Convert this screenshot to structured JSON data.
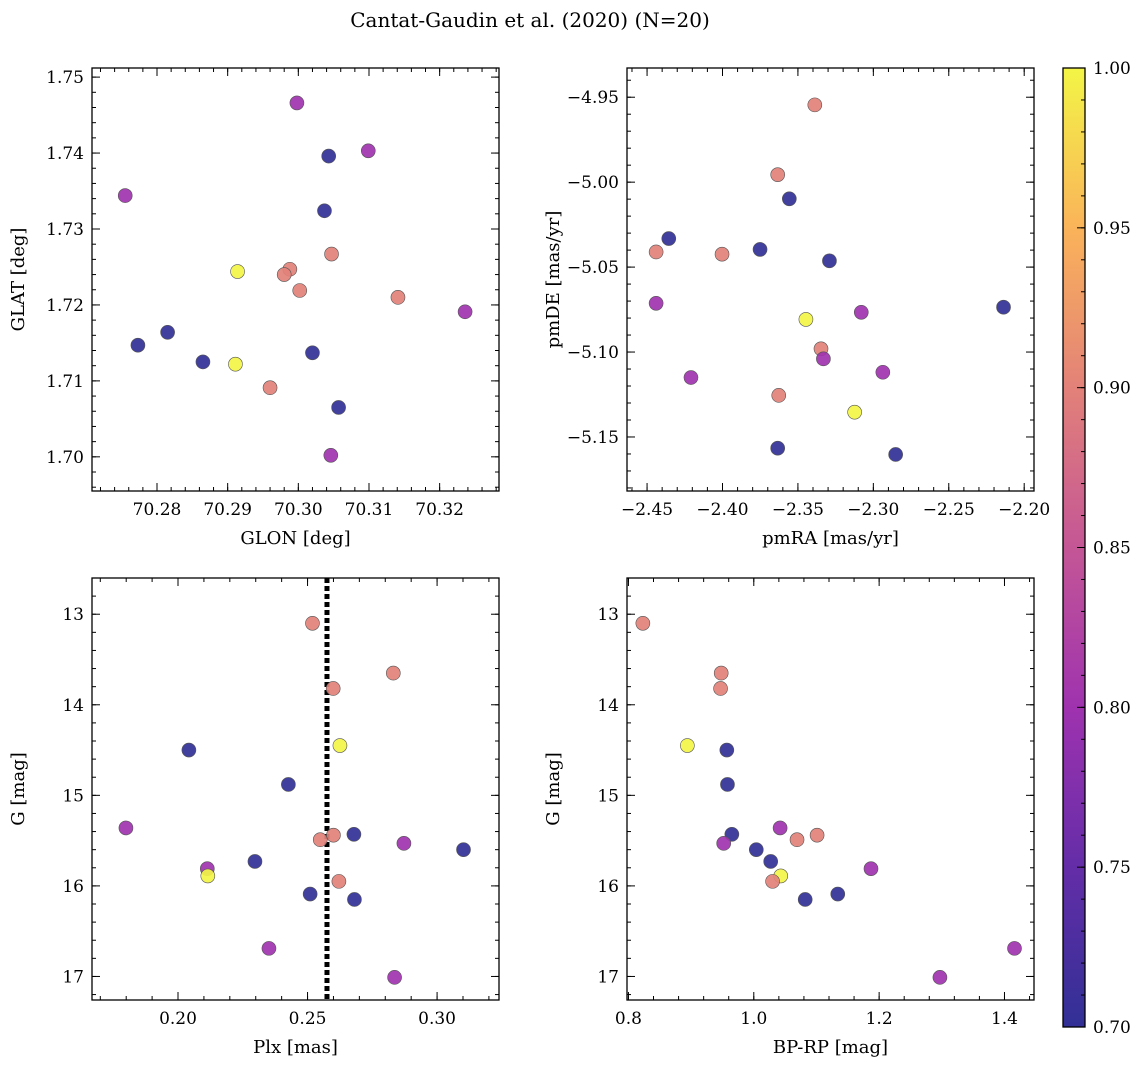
{
  "figure": {
    "title": "Cantat-Gaudin et al. (2020) (N=20)"
  },
  "colorbar": {
    "colormap": "plasma",
    "range": [
      0.7,
      1.0
    ],
    "ticks": [
      "0.70",
      "0.75",
      "0.80",
      "0.85",
      "0.90",
      "0.95",
      "1.00"
    ]
  },
  "chart_data": [
    {
      "type": "scatter",
      "xlabel": "GLON [deg]",
      "ylabel": "GLAT [deg]",
      "xlim": [
        70.2708,
        70.3284
      ],
      "ylim": [
        1.6955,
        1.7512
      ],
      "xticks": [
        "70.28",
        "70.29",
        "70.30",
        "70.31",
        "70.32"
      ],
      "yticks": [
        "1.70",
        "1.71",
        "1.72",
        "1.73",
        "1.74",
        "1.75"
      ],
      "points": [
        {
          "x": 70.2998,
          "y": 1.7466,
          "c": 0.8
        },
        {
          "x": 70.3043,
          "y": 1.7396,
          "c": 0.7
        },
        {
          "x": 70.3099,
          "y": 1.7403,
          "c": 0.8
        },
        {
          "x": 70.2755,
          "y": 1.7344,
          "c": 0.8
        },
        {
          "x": 70.3037,
          "y": 1.7324,
          "c": 0.7
        },
        {
          "x": 70.3047,
          "y": 1.7267,
          "c": 0.9
        },
        {
          "x": 70.2914,
          "y": 1.7244,
          "c": 1.0
        },
        {
          "x": 70.2988,
          "y": 1.7247,
          "c": 0.9
        },
        {
          "x": 70.298,
          "y": 1.724,
          "c": 0.9
        },
        {
          "x": 70.3002,
          "y": 1.7219,
          "c": 0.9
        },
        {
          "x": 70.3141,
          "y": 1.721,
          "c": 0.9
        },
        {
          "x": 70.3236,
          "y": 1.7191,
          "c": 0.8
        },
        {
          "x": 70.2773,
          "y": 1.7147,
          "c": 0.7
        },
        {
          "x": 70.2815,
          "y": 1.7164,
          "c": 0.7
        },
        {
          "x": 70.2865,
          "y": 1.7125,
          "c": 0.7
        },
        {
          "x": 70.2911,
          "y": 1.7122,
          "c": 1.0
        },
        {
          "x": 70.302,
          "y": 1.7137,
          "c": 0.7
        },
        {
          "x": 70.296,
          "y": 1.7091,
          "c": 0.9
        },
        {
          "x": 70.3057,
          "y": 1.7065,
          "c": 0.7
        },
        {
          "x": 70.3046,
          "y": 1.7002,
          "c": 0.8
        }
      ]
    },
    {
      "type": "scatter",
      "xlabel": "pmRA [mas/yr]",
      "ylabel": "pmDE [mas/yr]",
      "xlim": [
        -2.4633,
        -2.1935
      ],
      "ylim": [
        -5.1818,
        -4.9328
      ],
      "xticks": [
        "-2.45",
        "-2.40",
        "-2.35",
        "-2.30",
        "-2.25",
        "-2.20"
      ],
      "yticks": [
        "-4.95",
        "-5.00",
        "-5.05",
        "-5.10",
        "-5.15"
      ],
      "points": [
        {
          "x": -2.3388,
          "y": -4.9545,
          "c": 0.9
        },
        {
          "x": -2.3634,
          "y": -4.9956,
          "c": 0.9
        },
        {
          "x": -2.3557,
          "y": -5.0098,
          "c": 0.7
        },
        {
          "x": -2.4356,
          "y": -5.0332,
          "c": 0.7
        },
        {
          "x": -2.444,
          "y": -5.0411,
          "c": 0.9
        },
        {
          "x": -2.4003,
          "y": -5.0424,
          "c": 0.9
        },
        {
          "x": -2.3751,
          "y": -5.0396,
          "c": 0.7
        },
        {
          "x": -2.3291,
          "y": -5.0463,
          "c": 0.7
        },
        {
          "x": -2.444,
          "y": -5.0713,
          "c": 0.8
        },
        {
          "x": -2.3447,
          "y": -5.0808,
          "c": 1.0
        },
        {
          "x": -2.308,
          "y": -5.0766,
          "c": 0.8
        },
        {
          "x": -2.2137,
          "y": -5.0736,
          "c": 0.7
        },
        {
          "x": -2.3347,
          "y": -5.0981,
          "c": 0.9
        },
        {
          "x": -2.3331,
          "y": -5.104,
          "c": 0.8
        },
        {
          "x": -2.2937,
          "y": -5.1119,
          "c": 0.8
        },
        {
          "x": -2.4209,
          "y": -5.115,
          "c": 0.8
        },
        {
          "x": -2.3627,
          "y": -5.1255,
          "c": 0.9
        },
        {
          "x": -2.3124,
          "y": -5.1354,
          "c": 1.0
        },
        {
          "x": -2.3634,
          "y": -5.1566,
          "c": 0.7
        },
        {
          "x": -2.2852,
          "y": -5.1603,
          "c": 0.7
        }
      ]
    },
    {
      "type": "scatter",
      "xlabel": "Plx [mas]",
      "ylabel": "G [mag]",
      "xlim": [
        0.1668,
        0.3239
      ],
      "ylim": [
        17.26,
        12.6
      ],
      "y_inverted": true,
      "xticks": [
        "0.20",
        "0.25",
        "0.30"
      ],
      "yticks": [
        "13",
        "14",
        "15",
        "16",
        "17"
      ],
      "vline": {
        "x": 0.2575,
        "style": "dotted"
      },
      "points": [
        {
          "x": 0.2519,
          "y": 13.1,
          "c": 0.9
        },
        {
          "x": 0.2831,
          "y": 13.65,
          "c": 0.9
        },
        {
          "x": 0.2599,
          "y": 13.82,
          "c": 0.9
        },
        {
          "x": 0.2625,
          "y": 14.45,
          "c": 1.0
        },
        {
          "x": 0.2042,
          "y": 14.5,
          "c": 0.7
        },
        {
          "x": 0.2426,
          "y": 14.88,
          "c": 0.7
        },
        {
          "x": 0.1799,
          "y": 15.36,
          "c": 0.8
        },
        {
          "x": 0.2679,
          "y": 15.43,
          "c": 0.7
        },
        {
          "x": 0.26,
          "y": 15.44,
          "c": 0.9
        },
        {
          "x": 0.2549,
          "y": 15.49,
          "c": 0.9
        },
        {
          "x": 0.2872,
          "y": 15.53,
          "c": 0.8
        },
        {
          "x": 0.3102,
          "y": 15.6,
          "c": 0.7
        },
        {
          "x": 0.2297,
          "y": 15.73,
          "c": 0.7
        },
        {
          "x": 0.2113,
          "y": 15.81,
          "c": 0.8
        },
        {
          "x": 0.2115,
          "y": 15.89,
          "c": 1.0
        },
        {
          "x": 0.2621,
          "y": 15.95,
          "c": 0.9
        },
        {
          "x": 0.251,
          "y": 16.09,
          "c": 0.7
        },
        {
          "x": 0.2681,
          "y": 16.15,
          "c": 0.7
        },
        {
          "x": 0.2351,
          "y": 16.69,
          "c": 0.8
        },
        {
          "x": 0.2836,
          "y": 17.01,
          "c": 0.8
        }
      ]
    },
    {
      "type": "scatter",
      "xlabel": "BP-RP [mag]",
      "ylabel": "G [mag]",
      "xlim": [
        0.7977,
        1.4471
      ],
      "ylim": [
        17.26,
        12.6
      ],
      "y_inverted": true,
      "xticks": [
        "0.8",
        "1.0",
        "1.2",
        "1.4"
      ],
      "yticks": [
        "13",
        "14",
        "15",
        "16",
        "17"
      ],
      "points": [
        {
          "x": 0.823,
          "y": 13.1,
          "c": 0.9
        },
        {
          "x": 0.948,
          "y": 13.65,
          "c": 0.9
        },
        {
          "x": 0.947,
          "y": 13.82,
          "c": 0.9
        },
        {
          "x": 0.894,
          "y": 14.45,
          "c": 1.0
        },
        {
          "x": 0.957,
          "y": 14.5,
          "c": 0.7
        },
        {
          "x": 0.958,
          "y": 14.88,
          "c": 0.7
        },
        {
          "x": 1.042,
          "y": 15.36,
          "c": 0.8
        },
        {
          "x": 0.965,
          "y": 15.43,
          "c": 0.7
        },
        {
          "x": 1.101,
          "y": 15.44,
          "c": 0.9
        },
        {
          "x": 1.069,
          "y": 15.49,
          "c": 0.9
        },
        {
          "x": 0.952,
          "y": 15.53,
          "c": 0.8
        },
        {
          "x": 1.004,
          "y": 15.6,
          "c": 0.7
        },
        {
          "x": 1.027,
          "y": 15.73,
          "c": 0.7
        },
        {
          "x": 1.187,
          "y": 15.81,
          "c": 0.8
        },
        {
          "x": 1.043,
          "y": 15.89,
          "c": 1.0
        },
        {
          "x": 1.03,
          "y": 15.95,
          "c": 0.9
        },
        {
          "x": 1.134,
          "y": 16.09,
          "c": 0.7
        },
        {
          "x": 1.082,
          "y": 16.15,
          "c": 0.7
        },
        {
          "x": 1.416,
          "y": 16.69,
          "c": 0.8
        },
        {
          "x": 1.297,
          "y": 17.01,
          "c": 0.8
        }
      ]
    }
  ]
}
